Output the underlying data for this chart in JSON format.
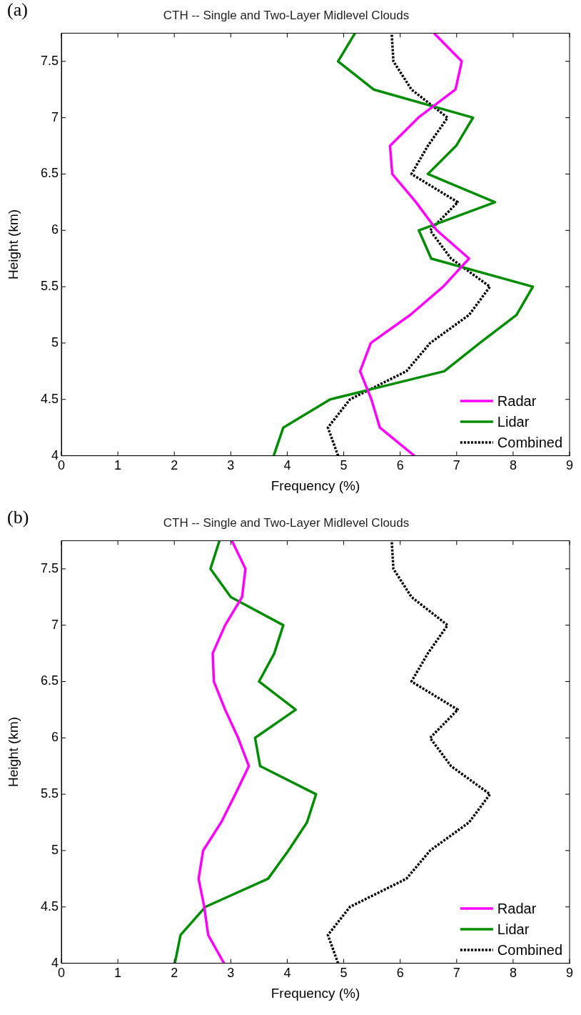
{
  "chart_data": [
    {
      "type": "line",
      "title": "CTH -- Single and Two-Layer Midlevel Clouds",
      "xlabel": "Frequency (%)",
      "ylabel": "Height (km)",
      "annotations": [
        "(a)"
      ],
      "xlim": [
        0,
        9
      ],
      "xticks": [
        0,
        1,
        2,
        3,
        4,
        5,
        6,
        7,
        8,
        9
      ],
      "ylim": [
        4,
        7.75
      ],
      "yticks": [
        4,
        4.5,
        5,
        5.5,
        6,
        6.5,
        7,
        7.5
      ],
      "grid": false,
      "legend": "bottom right",
      "marker": "none",
      "series": [
        {
          "name": "Radar",
          "color": "#ff00ff",
          "line_style": "solid",
          "x": [
            6.25,
            5.64,
            5.49,
            5.29,
            5.48,
            6.18,
            6.76,
            7.22,
            6.65,
            6.28,
            5.86,
            5.82,
            6.32,
            6.98,
            7.09,
            6.6
          ],
          "values": [
            4,
            4.25,
            4.5,
            4.75,
            5,
            5.25,
            5.5,
            5.75,
            6,
            6.25,
            6.5,
            6.75,
            7,
            7.25,
            7.5,
            7.75
          ]
        },
        {
          "name": "Lidar",
          "color": "#008c00",
          "line_style": "solid",
          "x": [
            3.76,
            3.93,
            4.76,
            6.78,
            7.41,
            8.06,
            8.35,
            6.55,
            6.33,
            7.68,
            6.49,
            6.99,
            7.29,
            5.53,
            4.9,
            5.2
          ],
          "values": [
            4,
            4.25,
            4.5,
            4.75,
            5,
            5.25,
            5.5,
            5.75,
            6,
            6.25,
            6.5,
            6.75,
            7,
            7.25,
            7.5,
            7.75
          ]
        },
        {
          "name": "Combined",
          "color": "#000000",
          "line_style": "dotted",
          "x": [
            4.9,
            4.72,
            5.11,
            6.11,
            6.53,
            7.22,
            7.59,
            6.9,
            6.53,
            7.02,
            6.2,
            6.49,
            6.84,
            6.2,
            5.88,
            5.85
          ],
          "values": [
            4,
            4.25,
            4.5,
            4.75,
            5,
            5.25,
            5.5,
            5.75,
            6,
            6.25,
            6.5,
            6.75,
            7,
            7.25,
            7.5,
            7.75
          ]
        }
      ]
    },
    {
      "type": "line",
      "title": "CTH -- Single and Two-Layer Midlevel Clouds",
      "xlabel": "Frequency (%)",
      "ylabel": "Height (km)",
      "annotations": [
        "(b)"
      ],
      "xlim": [
        0,
        9
      ],
      "xticks": [
        0,
        1,
        2,
        3,
        4,
        5,
        6,
        7,
        8,
        9
      ],
      "ylim": [
        4,
        7.75
      ],
      "yticks": [
        4,
        4.5,
        5,
        5.5,
        6,
        6.5,
        7,
        7.5
      ],
      "grid": false,
      "legend": "bottom right",
      "marker": "none",
      "series": [
        {
          "name": "Radar",
          "color": "#ff00ff",
          "line_style": "solid",
          "x": [
            2.88,
            2.6,
            2.53,
            2.43,
            2.51,
            2.83,
            3.08,
            3.32,
            3.13,
            2.9,
            2.7,
            2.68,
            2.9,
            3.2,
            3.26,
            3.02
          ],
          "values": [
            4,
            4.25,
            4.5,
            4.75,
            5,
            5.25,
            5.5,
            5.75,
            6,
            6.25,
            6.5,
            6.75,
            7,
            7.25,
            7.5,
            7.75
          ]
        },
        {
          "name": "Lidar",
          "color": "#008c00",
          "line_style": "solid",
          "x": [
            2.01,
            2.11,
            2.55,
            3.66,
            4.02,
            4.35,
            4.51,
            3.52,
            3.43,
            4.15,
            3.5,
            3.77,
            3.93,
            3.0,
            2.64,
            2.8
          ],
          "values": [
            4,
            4.25,
            4.5,
            4.75,
            5,
            5.25,
            5.5,
            5.75,
            6,
            6.25,
            6.5,
            6.75,
            7,
            7.25,
            7.5,
            7.75
          ]
        },
        {
          "name": "Combined",
          "color": "#000000",
          "line_style": "dotted",
          "x": [
            4.9,
            4.72,
            5.11,
            6.11,
            6.53,
            7.22,
            7.59,
            6.9,
            6.53,
            7.02,
            6.2,
            6.49,
            6.84,
            6.2,
            5.88,
            5.85
          ],
          "values": [
            4,
            4.25,
            4.5,
            4.75,
            5,
            5.25,
            5.5,
            5.75,
            6,
            6.25,
            6.5,
            6.75,
            7,
            7.25,
            7.5,
            7.75
          ]
        }
      ]
    }
  ]
}
